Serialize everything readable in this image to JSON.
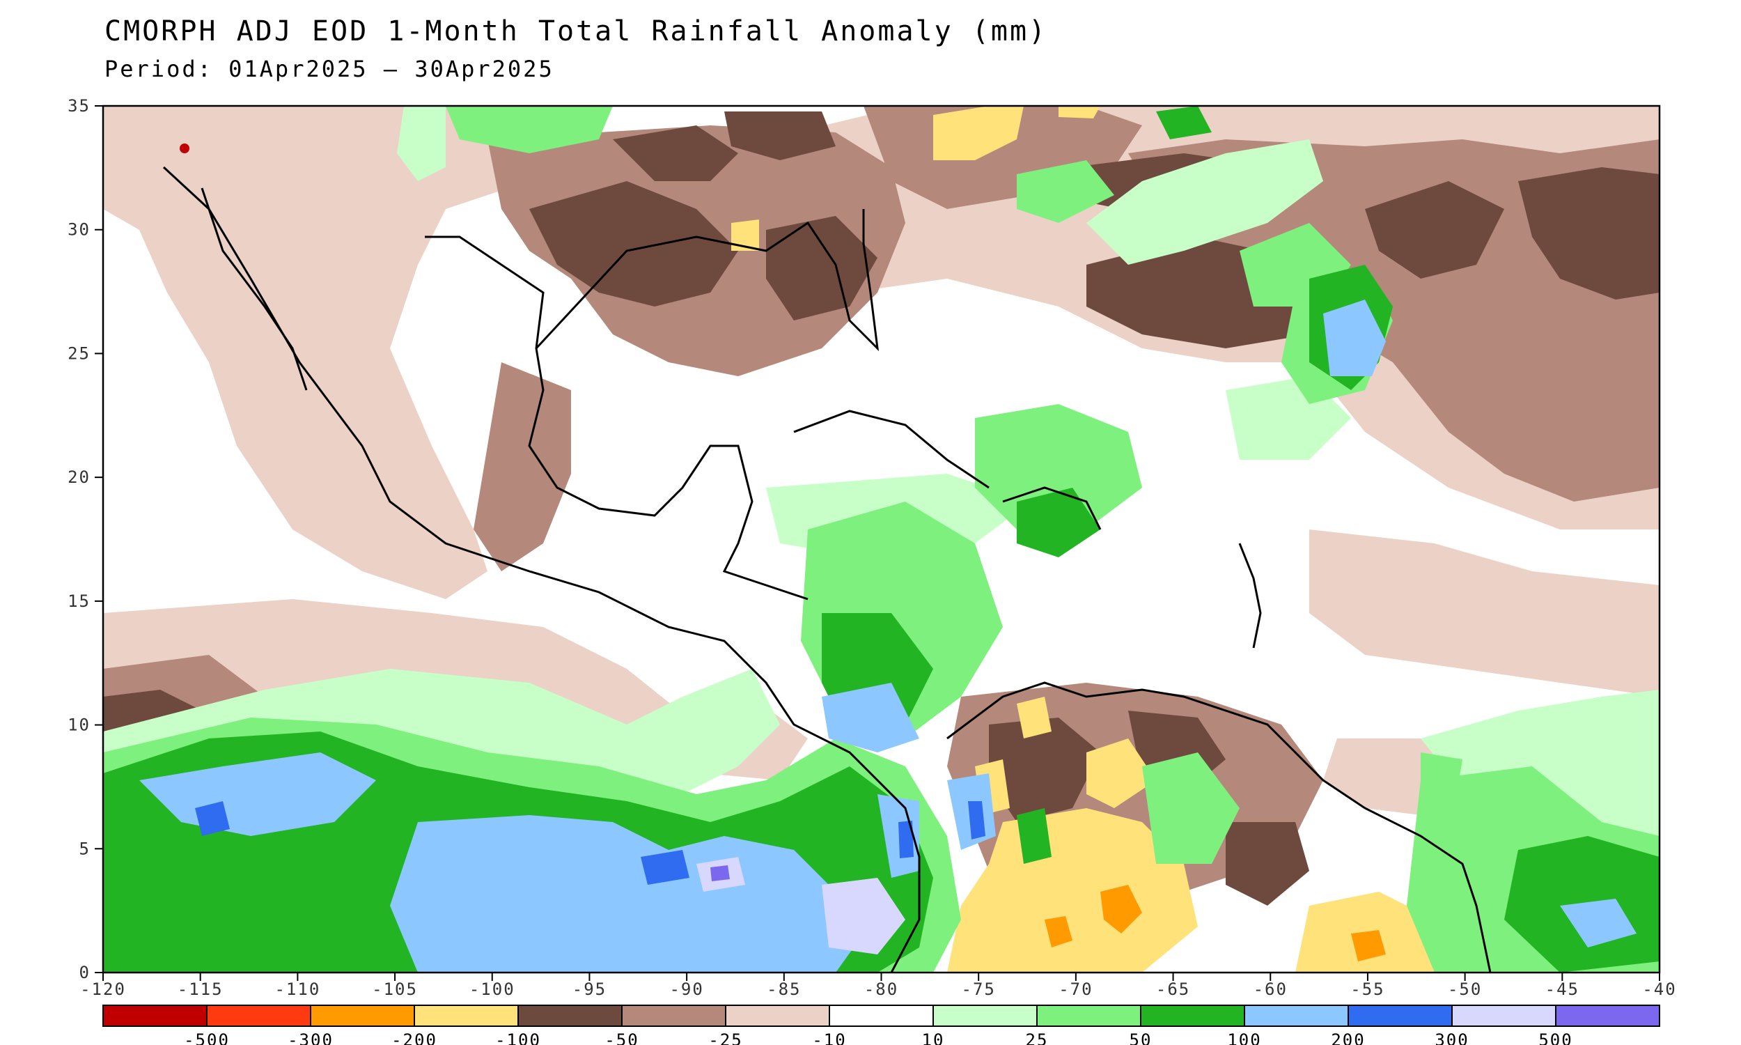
{
  "title": "CMORPH ADJ EOD 1-Month Total Rainfall Anomaly (mm)",
  "subtitle": "Period: 01Apr2025 – 30Apr2025",
  "map": {
    "lon_range": [
      -120,
      -40
    ],
    "lat_range": [
      0,
      35
    ],
    "x_ticks": [
      "-120",
      "-115",
      "-110",
      "-105",
      "-100",
      "-95",
      "-90",
      "-85",
      "-80",
      "-75",
      "-70",
      "-65",
      "-60",
      "-55",
      "-50",
      "-45",
      "-40"
    ],
    "y_ticks": [
      "0",
      "5",
      "10",
      "15",
      "20",
      "25",
      "30",
      "35"
    ]
  },
  "legend": {
    "colors": [
      "#c00000",
      "#ff3a10",
      "#ff9a00",
      "#ffe27a",
      "#6e4a3e",
      "#b4887a",
      "#ecd1c7",
      "#ffffff",
      "#c8ffc8",
      "#7ef07e",
      "#22b422",
      "#8cc8ff",
      "#2f6cf0",
      "#d8d8ff",
      "#7b68ee"
    ],
    "labels": [
      "-500",
      "-300",
      "-200",
      "-100",
      "-50",
      "-25",
      "-10",
      "10",
      "25",
      "50",
      "100",
      "200",
      "300",
      "500"
    ]
  }
}
